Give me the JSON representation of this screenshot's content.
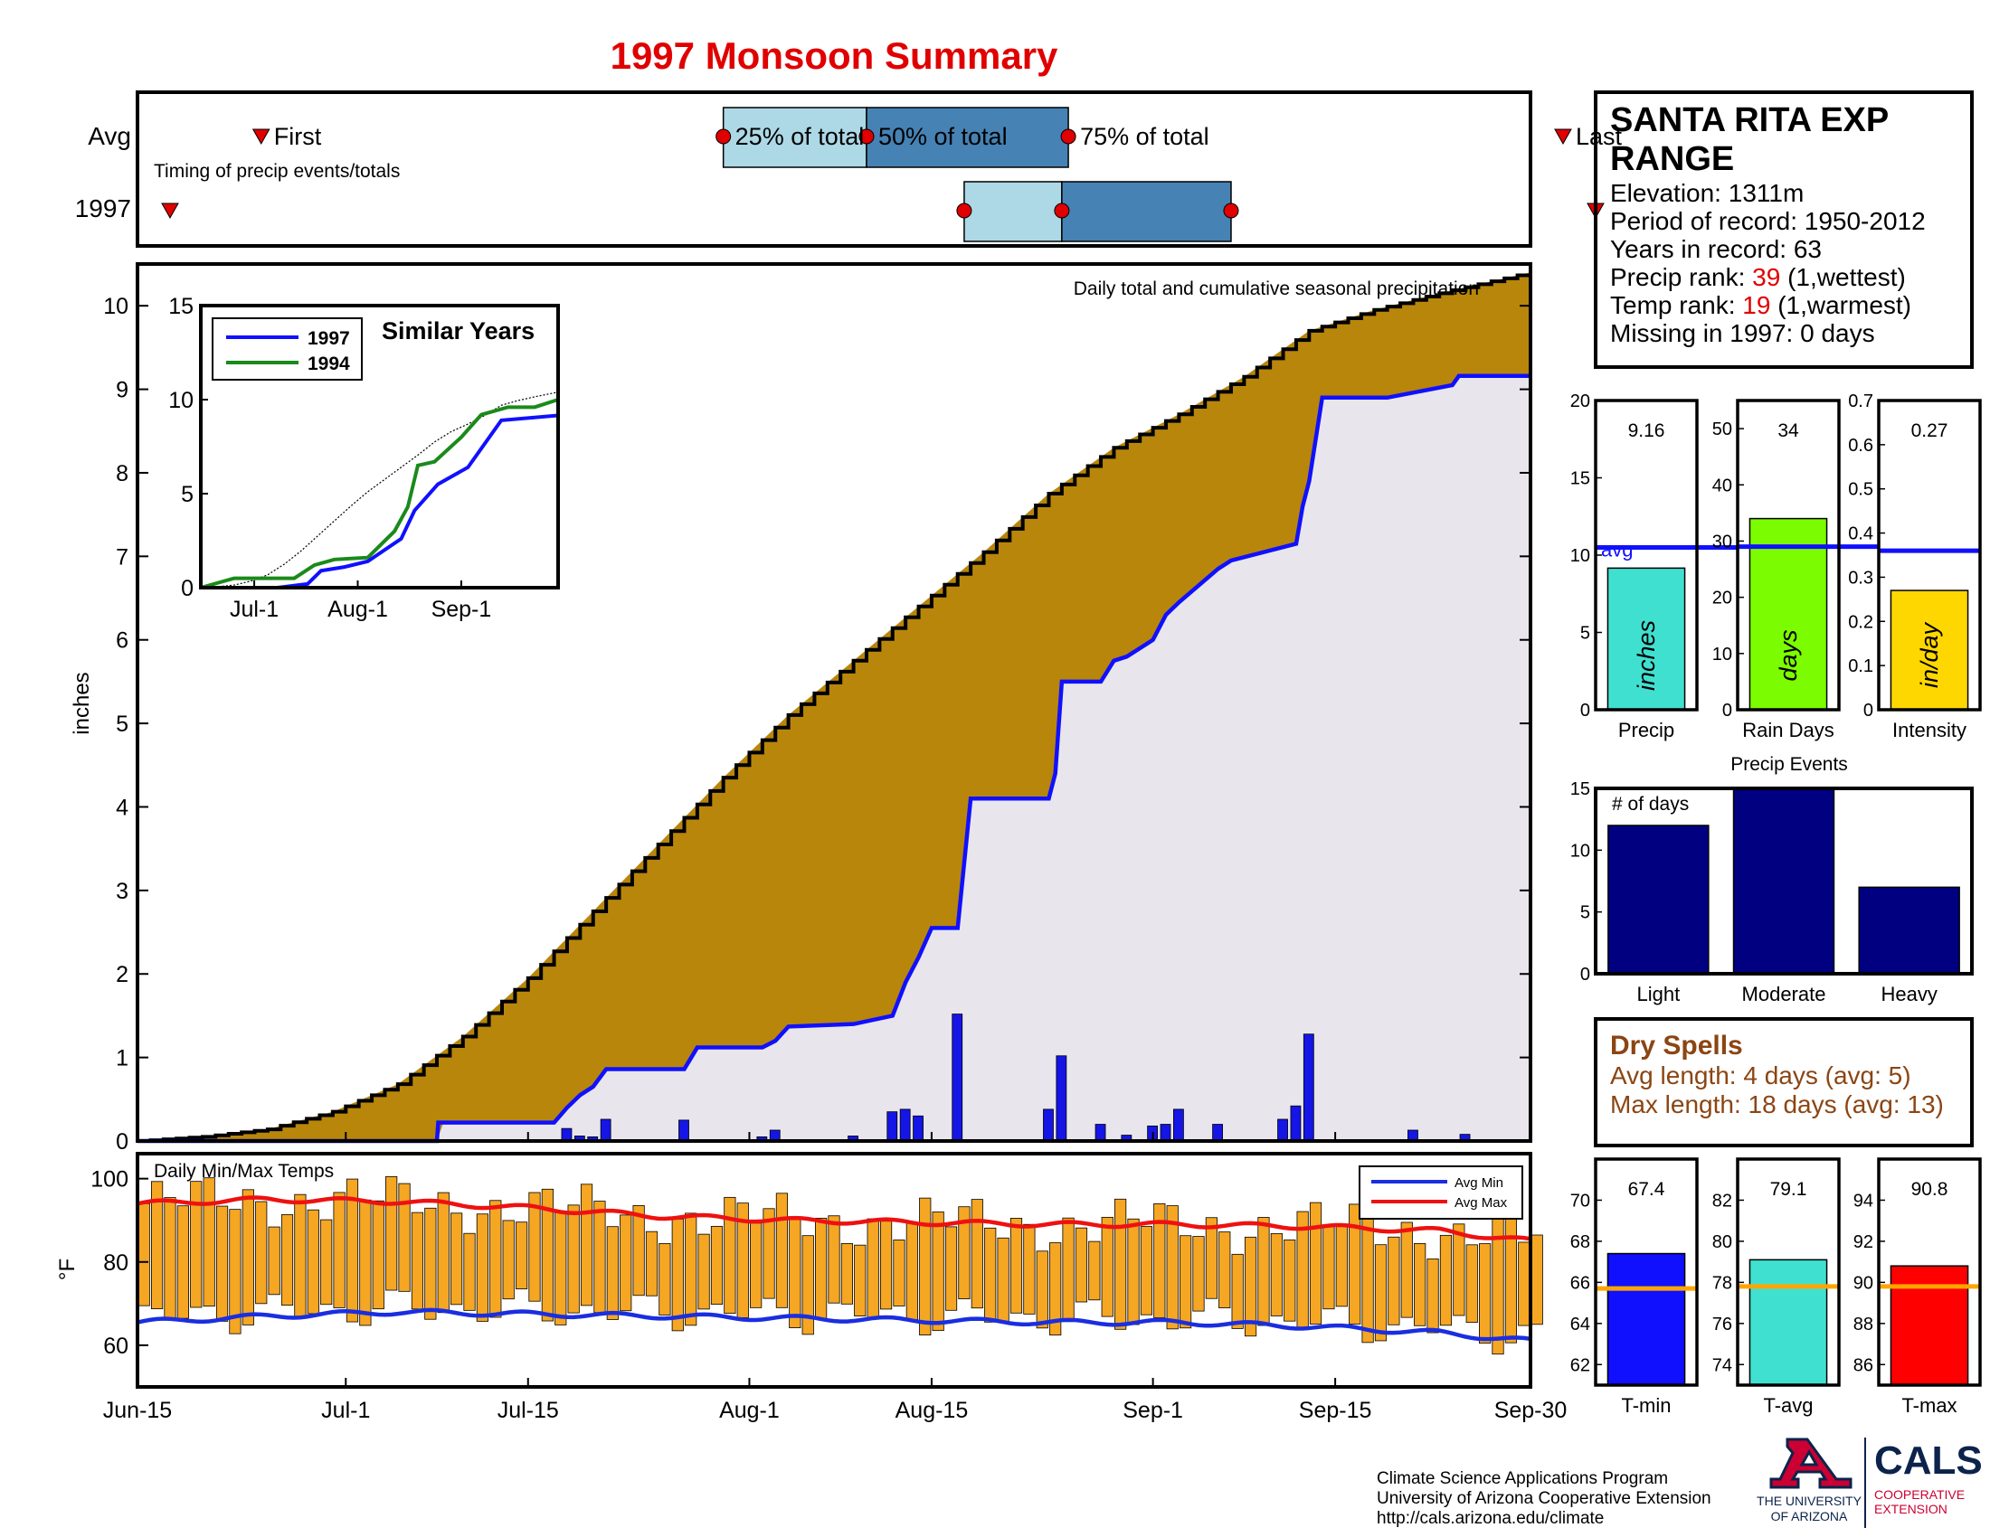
{
  "title": "1997 Monsoon Summary",
  "colors": {
    "title": "#e00000",
    "cum_fill": "#b8860b",
    "cum_avg_line": "#000000",
    "current_line": "#1010ff",
    "daily_bar": "#1515e6",
    "temp_bar": "#f5a623",
    "avg_min_line": "#1a2ee0",
    "avg_max_line": "#ee1111",
    "box_light": "#add8e6",
    "box_dark": "#4682b4",
    "marker_red": "#e00000",
    "precip_bar": "#40e0d0",
    "raindays_bar": "#7cfc00",
    "intensity_bar": "#ffd700",
    "events_bar": "#000080",
    "tmin_bar": "#1010ff",
    "tavg_bar": "#40e0d0",
    "tmax_bar": "#ff0000",
    "temp_avg_line": "#ffa500",
    "dry_text": "#8b4513",
    "bg_fill": "#e8e6ec"
  },
  "timing": {
    "row_labels": [
      "Avg",
      "1997"
    ],
    "first_label": "First",
    "last_label": "Last",
    "p25_label": "25% of total",
    "p50_label": "50% of total",
    "p75_label": "75% of total",
    "caption": "Timing of precip events/totals",
    "avg": {
      "first": 9.5,
      "p25": 45,
      "p50": 56,
      "p75": 71.5,
      "last": 109.5
    },
    "y1997": {
      "first": 2.5,
      "p25": 63.5,
      "p50": 71,
      "p75": 84,
      "last": 112
    }
  },
  "station": {
    "name_line1": "SANTA RITA EXP",
    "name_line2": "RANGE",
    "elevation": "Elevation: 1311m",
    "period": "Period of record: 1950-2012",
    "years": "Years in record: 63",
    "precip_rank_prefix": "Precip rank: ",
    "precip_rank_value": "39",
    "precip_rank_suffix": " (1,wettest)",
    "temp_rank_prefix": "Temp rank: ",
    "temp_rank_value": "19",
    "temp_rank_suffix": " (1,warmest)",
    "missing": "Missing in 1997: 0 days"
  },
  "x_axis": {
    "tick_labels": [
      "Jun-15",
      "Jul-1",
      "Jul-15",
      "Aug-1",
      "Aug-15",
      "Sep-1",
      "Sep-15",
      "Sep-30"
    ],
    "tick_days": [
      0,
      16,
      30,
      47,
      61,
      78,
      92,
      107
    ]
  },
  "main_chart": {
    "caption": "Daily total and cumulative seasonal precipitation",
    "ylabel": "inches",
    "ylim": [
      0,
      10.5
    ],
    "yticks": [
      0,
      1,
      2,
      3,
      4,
      5,
      6,
      7,
      8,
      9,
      10
    ]
  },
  "inset": {
    "title": "Similar Years",
    "legend": [
      "1997",
      "1994"
    ],
    "xticks": [
      "Jul-1",
      "Aug-1",
      "Sep-1"
    ],
    "yticks": [
      0,
      5,
      10,
      15
    ]
  },
  "temp_chart": {
    "caption": "Daily Min/Max Temps",
    "ylabel": "°F",
    "yticks": [
      60,
      80,
      100
    ],
    "ylim": [
      50,
      106
    ],
    "legend_min": "Avg Min",
    "legend_max": "Avg Max"
  },
  "stat_bars": [
    {
      "label": "Precip",
      "unit": "inches",
      "value_text": "9.16",
      "value": 9.16,
      "avg": 10.5,
      "ylim": [
        0,
        20
      ],
      "yticks": [
        "0",
        "5",
        "10",
        "15",
        "20"
      ],
      "avg_label": "avg"
    },
    {
      "label": "Rain Days",
      "unit": "days",
      "value_text": "34",
      "value": 34,
      "avg": 29,
      "ylim": [
        0,
        55
      ],
      "yticks": [
        "0",
        "10",
        "20",
        "30",
        "40",
        "50"
      ]
    },
    {
      "label": "Intensity",
      "unit": "in/day",
      "value_text": "0.27",
      "value": 0.27,
      "avg": 0.36,
      "ylim": [
        0,
        0.7
      ],
      "yticks": [
        "0",
        "0.1",
        "0.2",
        "0.3",
        "0.4",
        "0.5",
        "0.6",
        "0.7"
      ]
    }
  ],
  "precip_events": {
    "title": "Precip Events",
    "ylabel_inside": "# of days",
    "categories": [
      "Light",
      "Moderate",
      "Heavy"
    ],
    "values": [
      12,
      15,
      7
    ],
    "ylim": [
      0,
      15
    ],
    "yticks": [
      "0",
      "5",
      "10",
      "15"
    ]
  },
  "dry_spells": {
    "title": "Dry Spells",
    "avg_length": "Avg length: 4 days (avg: 5)",
    "max_length": "Max length: 18 days (avg: 13)"
  },
  "temp_bars": [
    {
      "label": "T-min",
      "value_text": "67.4",
      "value": 67.4,
      "avg": 65.7,
      "ylim": [
        61,
        72
      ],
      "yticks": [
        "62",
        "64",
        "66",
        "68",
        "70"
      ]
    },
    {
      "label": "T-avg",
      "value_text": "79.1",
      "value": 79.1,
      "avg": 77.8,
      "ylim": [
        73,
        84
      ],
      "yticks": [
        "74",
        "76",
        "78",
        "80",
        "82"
      ]
    },
    {
      "label": "T-max",
      "value_text": "90.8",
      "value": 90.8,
      "avg": 89.8,
      "ylim": [
        85,
        96
      ],
      "yticks": [
        "86",
        "88",
        "90",
        "92",
        "94"
      ]
    }
  ],
  "footer": {
    "line1": "Climate Science Applications Program",
    "line2": "University of Arizona Cooperative Extension",
    "line3": "http://cals.arizona.edu/climate",
    "ua_line1": "THE UNIVERSITY",
    "ua_line2": "OF ARIZONA",
    "cals": "CALS",
    "cals_sub1": "COOPERATIVE",
    "cals_sub2": "EXTENSION"
  },
  "chart_data": [
    {
      "type": "area",
      "title": "Daily total and cumulative seasonal precipitation",
      "ylabel": "inches",
      "ylim": [
        0,
        10.5
      ],
      "x_unit": "days since Jun-15",
      "series": [
        {
          "name": "Avg cumulative",
          "x": [
            0,
            5,
            10,
            15,
            20,
            25,
            30,
            35,
            40,
            45,
            50,
            55,
            60,
            65,
            70,
            75,
            80,
            85,
            90,
            95,
            100,
            107
          ],
          "values": [
            0,
            0.05,
            0.14,
            0.35,
            0.68,
            1.25,
            1.95,
            2.75,
            3.55,
            4.35,
            5.1,
            5.75,
            6.4,
            7.05,
            7.75,
            8.3,
            8.7,
            9.15,
            9.7,
            9.95,
            10.15,
            10.4
          ]
        },
        {
          "name": "1997 cumulative",
          "x": [
            0,
            23,
            23.1,
            32,
            33,
            34,
            35,
            36,
            42,
            43,
            48,
            49,
            50,
            55,
            58,
            59,
            60,
            61,
            63,
            64,
            70,
            70.5,
            71,
            74,
            75,
            76,
            78,
            79,
            80,
            83,
            84,
            89,
            89.5,
            90,
            91,
            96,
            101,
            101.5,
            107
          ],
          "values": [
            0,
            0,
            0.22,
            0.22,
            0.4,
            0.55,
            0.65,
            0.86,
            0.86,
            1.12,
            1.12,
            1.2,
            1.37,
            1.4,
            1.5,
            1.9,
            2.2,
            2.55,
            2.55,
            4.1,
            4.1,
            4.4,
            5.5,
            5.5,
            5.75,
            5.8,
            6.0,
            6.3,
            6.45,
            6.85,
            6.95,
            7.15,
            7.6,
            7.9,
            8.9,
            8.9,
            9.05,
            9.16,
            9.16
          ]
        },
        {
          "name": "Daily precip",
          "x": [
            33,
            34,
            35,
            36,
            42,
            48,
            49,
            55,
            58,
            59,
            60,
            63,
            70,
            71,
            74,
            76,
            78,
            79,
            80,
            83,
            88,
            89,
            90,
            98,
            102
          ],
          "values": [
            0.15,
            0.06,
            0.05,
            0.26,
            0.25,
            0.05,
            0.13,
            0.06,
            0.35,
            0.38,
            0.3,
            1.52,
            0.38,
            1.02,
            0.2,
            0.07,
            0.18,
            0.2,
            0.38,
            0.2,
            0.26,
            0.42,
            1.28,
            0.13,
            0.08
          ]
        }
      ]
    },
    {
      "type": "line",
      "title": "Similar Years",
      "ylim": [
        0,
        15
      ],
      "series": [
        {
          "name": "1997",
          "x": [
            0,
            23,
            32,
            36,
            43,
            50,
            60,
            64,
            71,
            80,
            90,
            107
          ],
          "values": [
            0,
            0,
            0.2,
            0.9,
            1.1,
            1.4,
            2.6,
            4.1,
            5.5,
            6.4,
            8.9,
            9.16
          ]
        },
        {
          "name": "1994",
          "x": [
            0,
            10,
            28,
            34,
            40,
            50,
            58,
            62,
            65,
            70,
            78,
            84,
            92,
            100,
            107
          ],
          "values": [
            0,
            0.5,
            0.5,
            1.2,
            1.5,
            1.6,
            3.0,
            4.3,
            6.5,
            6.7,
            8.0,
            9.2,
            9.6,
            9.6,
            10.0
          ]
        }
      ]
    },
    {
      "type": "bar",
      "title": "Daily Min/Max Temps",
      "ylabel": "°F",
      "ylim": [
        50,
        106
      ],
      "series": [
        {
          "name": "Avg Max",
          "x": [
            0,
            10,
            20,
            30,
            40,
            50,
            60,
            70,
            80,
            90,
            100,
            107
          ],
          "values": [
            94,
            95,
            94.5,
            93,
            91,
            90,
            89.5,
            89,
            89,
            88.5,
            87.5,
            85
          ]
        },
        {
          "name": "Avg Min",
          "x": [
            0,
            10,
            20,
            30,
            40,
            50,
            60,
            70,
            80,
            90,
            100,
            107
          ],
          "values": [
            65.5,
            67,
            68,
            67.5,
            67,
            66.5,
            66,
            65.5,
            65.5,
            64.5,
            63,
            61
          ]
        }
      ]
    },
    {
      "type": "bar",
      "title": "Precip Events",
      "categories": [
        "Light",
        "Moderate",
        "Heavy"
      ],
      "values": [
        12,
        15,
        7
      ],
      "ylim": [
        0,
        15
      ]
    }
  ]
}
